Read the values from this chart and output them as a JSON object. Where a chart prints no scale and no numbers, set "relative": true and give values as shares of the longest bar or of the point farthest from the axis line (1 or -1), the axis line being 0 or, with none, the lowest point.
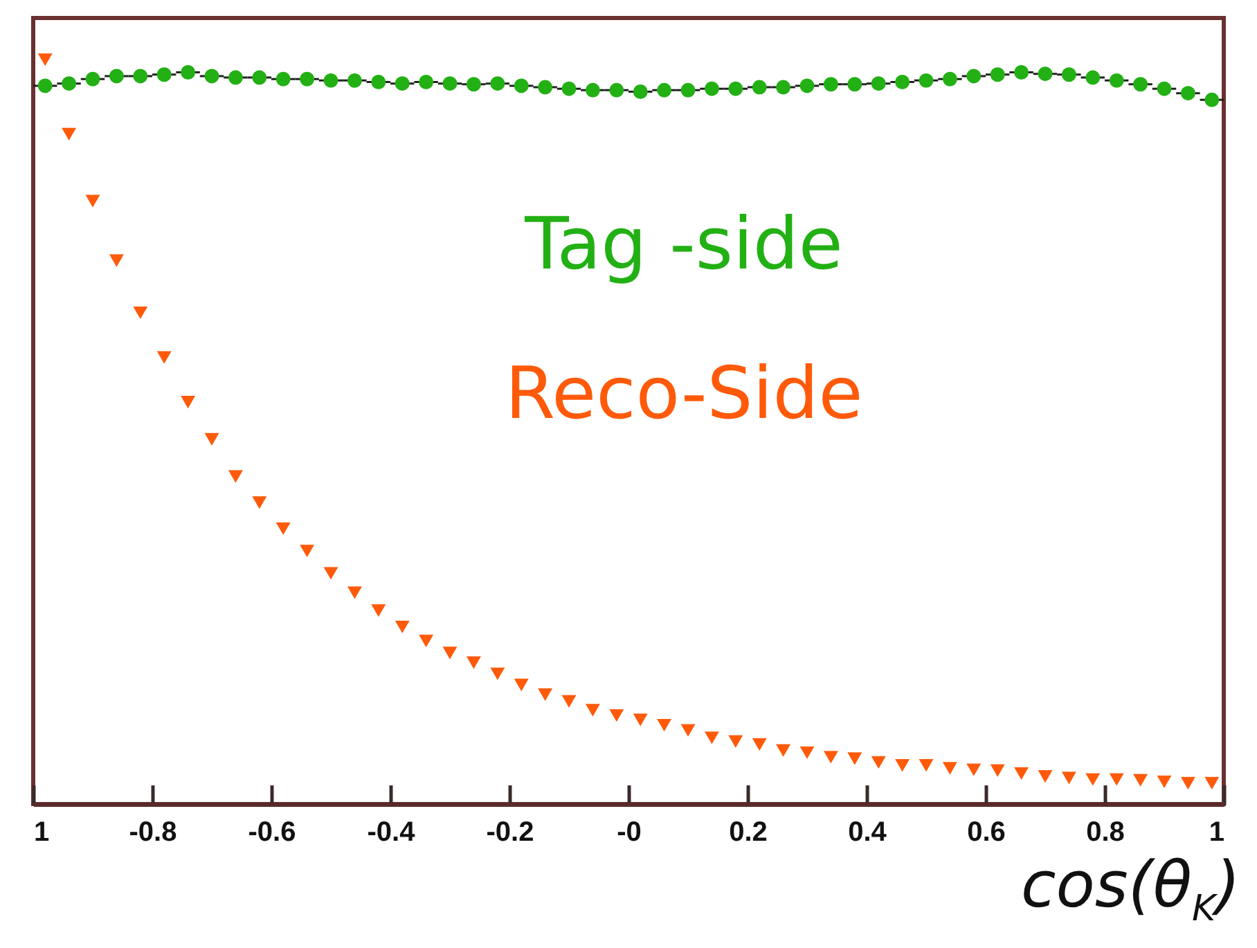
{
  "chart_data": {
    "type": "scatter",
    "relative": true,
    "xlabel": "cos(θ$_{K}$)",
    "xlim": [
      -1,
      1
    ],
    "xticks": [
      {
        "value": -1,
        "label": "1"
      },
      -0.8,
      -0.6,
      -0.4,
      -0.2,
      {
        "value": 0,
        "label": "-0"
      },
      0.2,
      0.4,
      0.6,
      0.8,
      1
    ],
    "x": [
      -0.98,
      -0.94,
      -0.9,
      -0.86,
      -0.82,
      -0.78,
      -0.74,
      -0.7,
      -0.66,
      -0.62,
      -0.58,
      -0.54,
      -0.5,
      -0.46,
      -0.42,
      -0.38,
      -0.34,
      -0.3,
      -0.26,
      -0.22,
      -0.18,
      -0.14,
      -0.1,
      -0.06,
      -0.02,
      0.02,
      0.06,
      0.1,
      0.14,
      0.18,
      0.22,
      0.26,
      0.3,
      0.34,
      0.38,
      0.42,
      0.46,
      0.5,
      0.54,
      0.58,
      0.62,
      0.66,
      0.7,
      0.74,
      0.78,
      0.82,
      0.86,
      0.9,
      0.94,
      0.98
    ],
    "series": [
      {
        "name": "Tag -side",
        "color": "#22b014",
        "marker": "circle",
        "xerrors": [
          0.02,
          0.02,
          0.02,
          0.02,
          0.02,
          0.02,
          0.02,
          0.02,
          0.02,
          0.02,
          0.02,
          0.02,
          0.02,
          0.02,
          0.02,
          0.02,
          0.02,
          0.02,
          0.02,
          0.02,
          0.02,
          0.02,
          0.02,
          0.02,
          0.02,
          0.02,
          0.02,
          0.02,
          0.02,
          0.02,
          0.02,
          0.02,
          0.02,
          0.02,
          0.02,
          0.02,
          0.02,
          0.02,
          0.02,
          0.02,
          0.02,
          0.02,
          0.02,
          0.02,
          0.02,
          0.02,
          0.02,
          0.02,
          0.02,
          0.02
        ],
        "values": [
          0.965,
          0.968,
          0.974,
          0.978,
          0.978,
          0.98,
          0.983,
          0.978,
          0.976,
          0.976,
          0.974,
          0.974,
          0.972,
          0.972,
          0.97,
          0.968,
          0.97,
          0.968,
          0.967,
          0.968,
          0.965,
          0.963,
          0.961,
          0.959,
          0.959,
          0.957,
          0.959,
          0.959,
          0.961,
          0.961,
          0.963,
          0.963,
          0.965,
          0.967,
          0.967,
          0.968,
          0.97,
          0.972,
          0.974,
          0.978,
          0.98,
          0.983,
          0.981,
          0.98,
          0.976,
          0.972,
          0.967,
          0.961,
          0.955,
          0.946
        ]
      },
      {
        "name": "Reco-Side",
        "color": "#ff5a0a",
        "marker": "triangle",
        "values": [
          1.0,
          0.9,
          0.81,
          0.73,
          0.66,
          0.6,
          0.54,
          0.49,
          0.44,
          0.405,
          0.37,
          0.34,
          0.31,
          0.284,
          0.26,
          0.238,
          0.219,
          0.203,
          0.19,
          0.175,
          0.16,
          0.147,
          0.138,
          0.126,
          0.119,
          0.113,
          0.106,
          0.099,
          0.089,
          0.084,
          0.08,
          0.072,
          0.069,
          0.063,
          0.061,
          0.056,
          0.052,
          0.052,
          0.048,
          0.046,
          0.045,
          0.041,
          0.037,
          0.035,
          0.033,
          0.033,
          0.032,
          0.03,
          0.028,
          0.028
        ]
      }
    ]
  }
}
